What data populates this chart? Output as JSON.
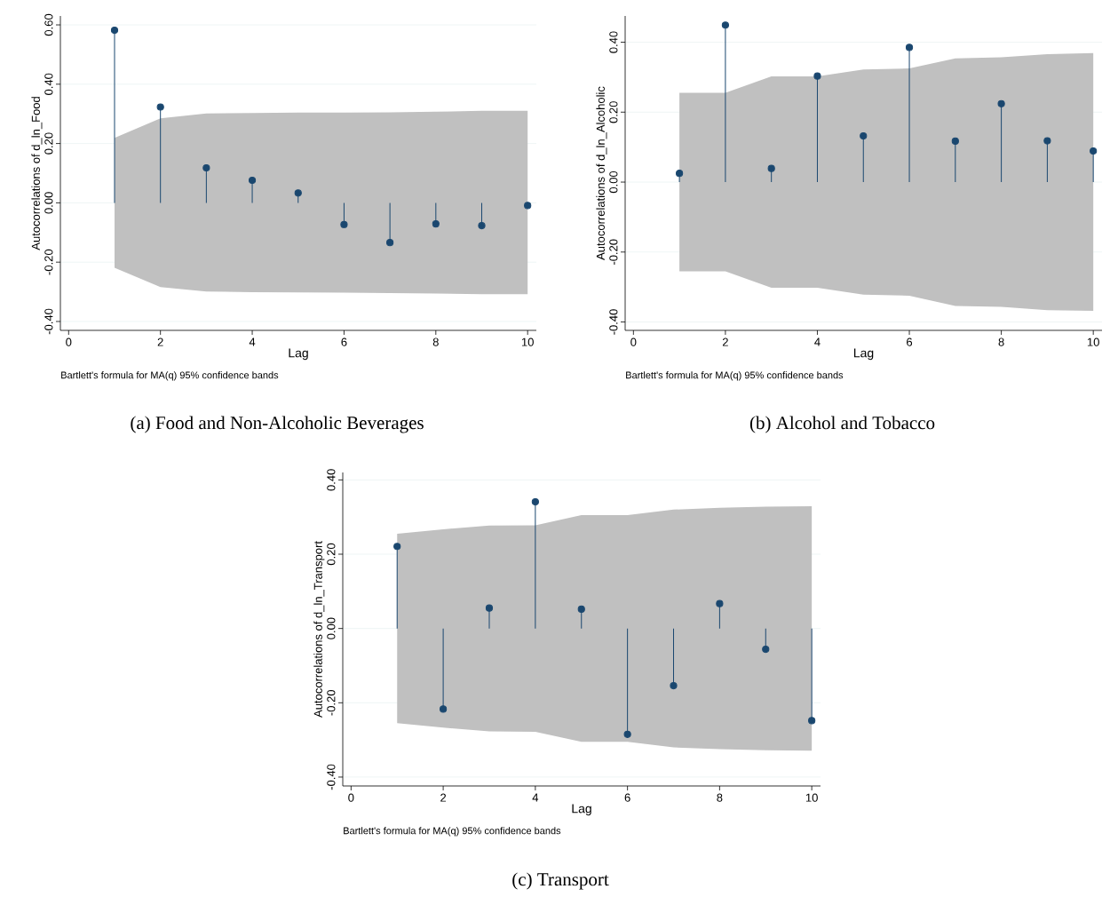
{
  "chart_data": [
    {
      "type": "lollipop",
      "title": "(a) Food and Non-Alcoholic Beverages",
      "xlabel": "Lag",
      "ylabel": "Autocorrelations of d_ln_Food",
      "annotations": [
        "Bartlett's formula for MA(q) 95% confidence bands"
      ],
      "x": [
        1,
        2,
        3,
        4,
        5,
        6,
        7,
        8,
        9,
        10
      ],
      "series": [
        {
          "color": "#1a476f",
          "values": [
            0.582,
            0.323,
            0.118,
            0.076,
            0.033,
            -0.073,
            -0.134,
            -0.071,
            -0.077,
            -0.009
          ],
          "lower": [
            -0.219,
            -0.284,
            -0.299,
            -0.301,
            -0.302,
            -0.303,
            -0.304,
            -0.306,
            -0.308,
            -0.308
          ],
          "upper": [
            0.219,
            0.285,
            0.301,
            0.303,
            0.304,
            0.304,
            0.305,
            0.307,
            0.31,
            0.31
          ]
        }
      ],
      "xlim": [
        -0.18,
        10.19
      ],
      "ylim": [
        -0.43,
        0.63
      ],
      "xticks": [
        0,
        2,
        4,
        6,
        8,
        10
      ],
      "yticks": [
        {
          "value": -0.4,
          "label": "-0.40"
        },
        {
          "value": -0.2,
          "label": "-0.20"
        },
        {
          "value": 0,
          "label": "0.00"
        },
        {
          "value": 0.2,
          "label": "0.20"
        },
        {
          "value": 0.4,
          "label": "0.40"
        },
        {
          "value": 0.6,
          "label": "0.60"
        }
      ],
      "grid": "y",
      "marker": "circle"
    },
    {
      "type": "lollipop",
      "title": "(b) Alcohol and Tobacco",
      "xlabel": "Lag",
      "ylabel": "Autocorrelations of d_ln_Alcoholic",
      "annotations": [
        "Bartlett's formula for MA(q) 95% confidence bands"
      ],
      "x": [
        1,
        2,
        3,
        4,
        5,
        6,
        7,
        8,
        9,
        10
      ],
      "series": [
        {
          "color": "#1a476f",
          "values": [
            0.025,
            0.449,
            0.039,
            0.303,
            0.132,
            0.385,
            0.117,
            0.224,
            0.118,
            0.089
          ],
          "lower": [
            -0.255,
            -0.255,
            -0.302,
            -0.302,
            -0.322,
            -0.325,
            -0.354,
            -0.357,
            -0.366,
            -0.368
          ],
          "upper": [
            0.255,
            0.255,
            0.302,
            0.302,
            0.322,
            0.325,
            0.354,
            0.357,
            0.366,
            0.369
          ]
        }
      ],
      "xlim": [
        -0.18,
        10.19
      ],
      "ylim": [
        -0.424,
        0.475
      ],
      "xticks": [
        0,
        2,
        4,
        6,
        8,
        10
      ],
      "yticks": [
        {
          "value": -0.4,
          "label": "-0.40"
        },
        {
          "value": -0.2,
          "label": "-0.20"
        },
        {
          "value": 0,
          "label": "0.00"
        },
        {
          "value": 0.2,
          "label": "0.20"
        },
        {
          "value": 0.4,
          "label": "0.40"
        }
      ],
      "grid": "y",
      "marker": "circle"
    },
    {
      "type": "lollipop",
      "title": "(c) Transport",
      "xlabel": "Lag",
      "ylabel": "Autocorrelations of d_ln_Transport",
      "annotations": [
        "Bartlett's formula for MA(q) 95% confidence bands"
      ],
      "x": [
        1,
        2,
        3,
        4,
        5,
        6,
        7,
        8,
        9,
        10
      ],
      "series": [
        {
          "color": "#1a476f",
          "values": [
            0.221,
            -0.217,
            0.055,
            0.341,
            0.052,
            -0.285,
            -0.154,
            0.067,
            -0.056,
            -0.248
          ],
          "lower": [
            -0.255,
            -0.267,
            -0.277,
            -0.278,
            -0.305,
            -0.305,
            -0.32,
            -0.325,
            -0.328,
            -0.329
          ],
          "upper": [
            0.255,
            0.267,
            0.277,
            0.278,
            0.305,
            0.305,
            0.32,
            0.325,
            0.328,
            0.329
          ]
        }
      ],
      "xlim": [
        -0.18,
        10.19
      ],
      "ylim": [
        -0.424,
        0.42
      ],
      "xticks": [
        0,
        2,
        4,
        6,
        8,
        10
      ],
      "yticks": [
        {
          "value": -0.4,
          "label": "-0.40"
        },
        {
          "value": -0.2,
          "label": "-0.20"
        },
        {
          "value": 0,
          "label": "0.00"
        },
        {
          "value": 0.2,
          "label": "0.20"
        },
        {
          "value": 0.4,
          "label": "0.40"
        }
      ],
      "grid": "y",
      "marker": "circle"
    }
  ]
}
